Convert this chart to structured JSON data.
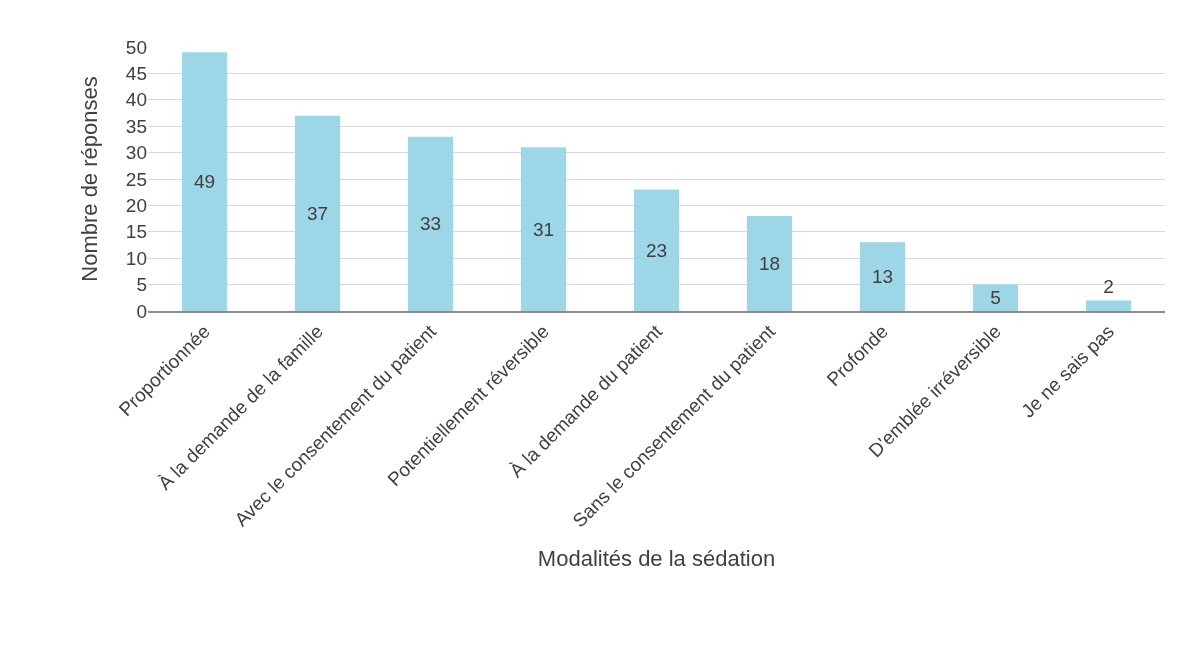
{
  "chart_data": {
    "type": "bar",
    "xlabel": "Modalités de la sédation",
    "ylabel": "Nombre de réponses",
    "categories": [
      "Proportionnée",
      "À la demande de la famille",
      "Avec le consentement du patient",
      "Potentiellement réversible",
      "À la demande du patient",
      "Sans le consentement du patient",
      "Profonde",
      "D'emblée irréversible",
      "Je ne sais pas"
    ],
    "values": [
      49,
      37,
      33,
      31,
      23,
      18,
      13,
      5,
      2
    ],
    "color": "#9dd6e6",
    "ylim": [
      0,
      50
    ],
    "yticks": [
      0,
      5,
      10,
      15,
      20,
      25,
      30,
      35,
      40,
      45,
      50
    ],
    "grid": "y",
    "data_labels": true
  }
}
